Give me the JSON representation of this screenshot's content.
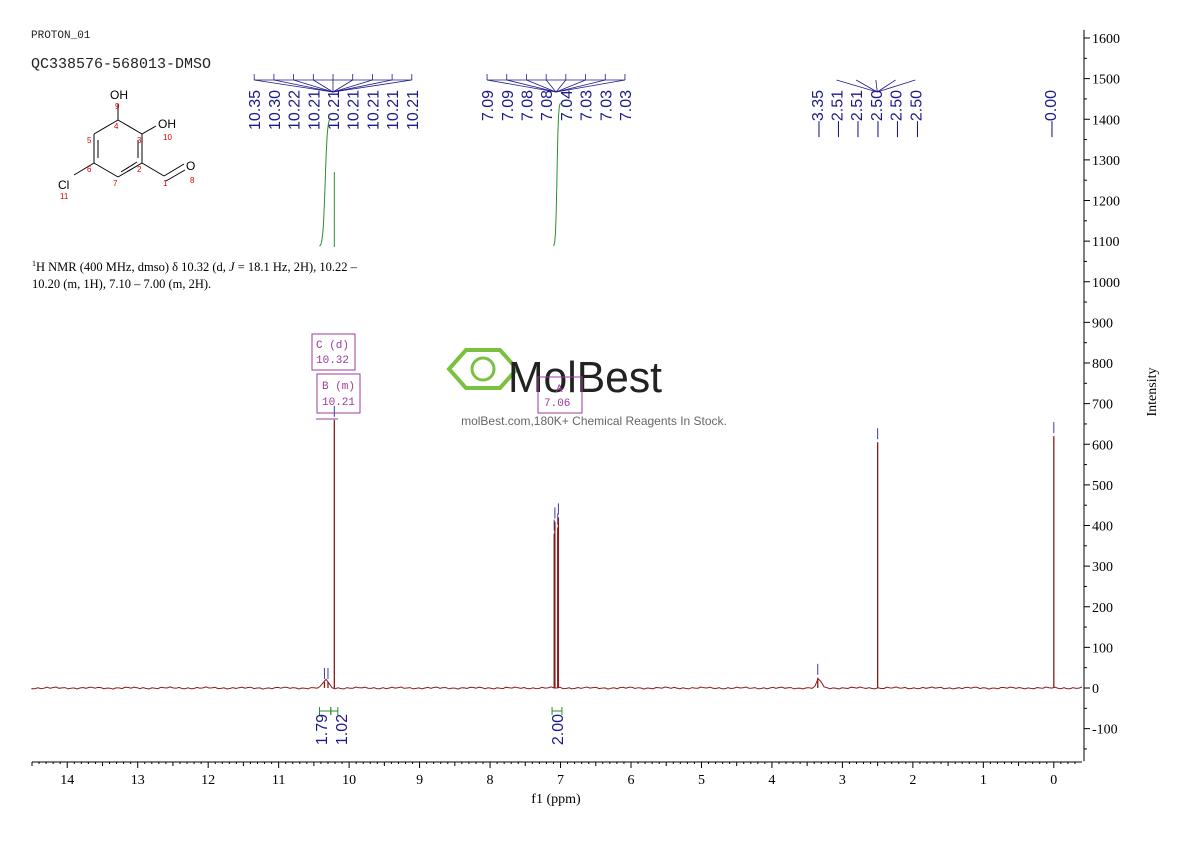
{
  "header": {
    "experiment": "PROTON_01",
    "sample_id": "QC338576-568013-DMSO"
  },
  "structure": {
    "atoms": {
      "oh_top": "OH",
      "oh_top_num": "9",
      "c4": "4",
      "oh_right": "OH",
      "oh_right_num": "10",
      "c3": "3",
      "c5": "5",
      "c6": "6",
      "c2": "2",
      "c7": "7",
      "cl": "Cl",
      "cl_num": "11",
      "c1": "1",
      "o": "O",
      "o_num": "8"
    }
  },
  "nmr_summary": {
    "sup": "1",
    "line1_a": "H NMR (400 MHz, dmso) δ 10.32 (d, ",
    "line1_j": "J",
    "line1_b": " = 18.1 Hz, 2H), 10.22 –",
    "line2": "10.20 (m, 1H), 7.10 – 7.00 (m, 2H)."
  },
  "watermark": {
    "brand": "MolBest",
    "tagline": "molBest.com,180K+ Chemical Reagents In Stock."
  },
  "multiplets": [
    {
      "label": "C (d)",
      "shift": "10.32"
    },
    {
      "label": "B (m)",
      "shift": "10.21"
    },
    {
      "label": "A",
      "shift": "7.06"
    }
  ],
  "peak_labels": {
    "group1": [
      "10.35",
      "10.30",
      "10.22",
      "10.21",
      "10.21",
      "10.21",
      "10.21",
      "10.21",
      "10.21"
    ],
    "group2": [
      "7.09",
      "7.09",
      "7.08",
      "7.08",
      "7.04",
      "7.03",
      "7.03",
      "7.03"
    ],
    "group3": [
      "3.35",
      "2.51",
      "2.51",
      "2.50",
      "2.50",
      "2.50"
    ],
    "group4": [
      "0.00"
    ]
  },
  "colors": {
    "spectrum": "#8b1a1a",
    "peak_label": "#1a1a8c",
    "integral": "#2e8b2e",
    "multiplet_box": "#9b3b9b",
    "logo": "#7ac142"
  },
  "chart_data": {
    "type": "line",
    "xlabel": "f1 (ppm)",
    "ylabel": "Intensity",
    "xlim": [
      14.5,
      -0.4
    ],
    "ylim": [
      -180,
      1620
    ],
    "x_ticks": [
      14,
      13,
      12,
      11,
      10,
      9,
      8,
      7,
      6,
      5,
      4,
      3,
      2,
      1,
      0
    ],
    "y_ticks": [
      -100,
      0,
      100,
      200,
      300,
      400,
      500,
      600,
      700,
      800,
      900,
      1000,
      1100,
      1200,
      1300,
      1400,
      1500,
      1600
    ],
    "peaks": [
      {
        "ppm": 10.35,
        "height": 15
      },
      {
        "ppm": 10.3,
        "height": 15
      },
      {
        "ppm": 10.21,
        "height": 660
      },
      {
        "ppm": 7.09,
        "height": 380
      },
      {
        "ppm": 7.08,
        "height": 410
      },
      {
        "ppm": 7.04,
        "height": 395
      },
      {
        "ppm": 7.03,
        "height": 420
      },
      {
        "ppm": 3.35,
        "height": 25
      },
      {
        "ppm": 2.5,
        "height": 605
      },
      {
        "ppm": 0.0,
        "height": 620
      }
    ],
    "integrals": [
      {
        "from": 10.42,
        "to": 10.26,
        "value": "1.79"
      },
      {
        "from": 10.26,
        "to": 10.16,
        "value": "1.02"
      },
      {
        "from": 7.12,
        "to": 6.98,
        "value": "2.00"
      }
    ]
  }
}
